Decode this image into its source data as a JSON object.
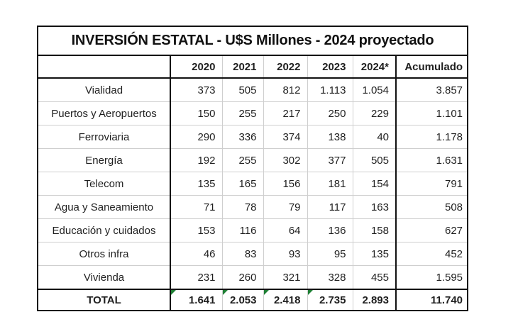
{
  "title": "INVERSIÓN ESTATAL - U$S Millones - 2024 proyectado",
  "table": {
    "corner_cell": "",
    "columns": [
      "2020",
      "2021",
      "2022",
      "2023",
      "2024*",
      "Acumulado"
    ],
    "rows": [
      {
        "label": "Vialidad",
        "values": [
          "373",
          "505",
          "812",
          "1.113",
          "1.054",
          "3.857"
        ]
      },
      {
        "label": "Puertos y Aeropuertos",
        "values": [
          "150",
          "255",
          "217",
          "250",
          "229",
          "1.101"
        ]
      },
      {
        "label": "Ferroviaria",
        "values": [
          "290",
          "336",
          "374",
          "138",
          "40",
          "1.178"
        ]
      },
      {
        "label": "Energía",
        "values": [
          "192",
          "255",
          "302",
          "377",
          "505",
          "1.631"
        ]
      },
      {
        "label": "Telecom",
        "values": [
          "135",
          "165",
          "156",
          "181",
          "154",
          "791"
        ]
      },
      {
        "label": "Agua y Saneamiento",
        "values": [
          "71",
          "78",
          "79",
          "117",
          "163",
          "508"
        ]
      },
      {
        "label": "Educación y cuidados",
        "values": [
          "153",
          "116",
          "64",
          "136",
          "158",
          "627"
        ]
      },
      {
        "label": "Otros infra",
        "values": [
          "46",
          "83",
          "93",
          "95",
          "135",
          "452"
        ]
      },
      {
        "label": "Vivienda",
        "values": [
          "231",
          "260",
          "321",
          "328",
          "455",
          "1.595"
        ]
      }
    ],
    "total": {
      "label": "TOTAL",
      "values": [
        "1.641",
        "2.053",
        "2.418",
        "2.735",
        "2.893",
        "11.740"
      ],
      "error_flag_columns": [
        0,
        1,
        2,
        3
      ]
    }
  },
  "colors": {
    "border_dark": "#111111",
    "grid_light": "#cfcfcf",
    "text": "#1f1f1f",
    "error_flag_green": "#1e7e34",
    "background": "#ffffff"
  },
  "chart_data": {
    "type": "table",
    "title": "INVERSIÓN ESTATAL - U$S Millones - 2024 proyectado",
    "columns": [
      "",
      "2020",
      "2021",
      "2022",
      "2023",
      "2024*",
      "Acumulado"
    ],
    "rows": [
      [
        "Vialidad",
        373,
        505,
        812,
        1113,
        1054,
        3857
      ],
      [
        "Puertos y Aeropuertos",
        150,
        255,
        217,
        250,
        229,
        1101
      ],
      [
        "Ferroviaria",
        290,
        336,
        374,
        138,
        40,
        1178
      ],
      [
        "Energía",
        192,
        255,
        302,
        377,
        505,
        1631
      ],
      [
        "Telecom",
        135,
        165,
        156,
        181,
        154,
        791
      ],
      [
        "Agua y Saneamiento",
        71,
        78,
        79,
        117,
        163,
        508
      ],
      [
        "Educación y cuidados",
        153,
        116,
        64,
        136,
        158,
        627
      ],
      [
        "Otros infra",
        46,
        83,
        93,
        95,
        135,
        452
      ],
      [
        "Vivienda",
        231,
        260,
        321,
        328,
        455,
        1595
      ],
      [
        "TOTAL",
        1641,
        2053,
        2418,
        2735,
        2893,
        11740
      ]
    ],
    "number_format": "dot thousands separator"
  }
}
